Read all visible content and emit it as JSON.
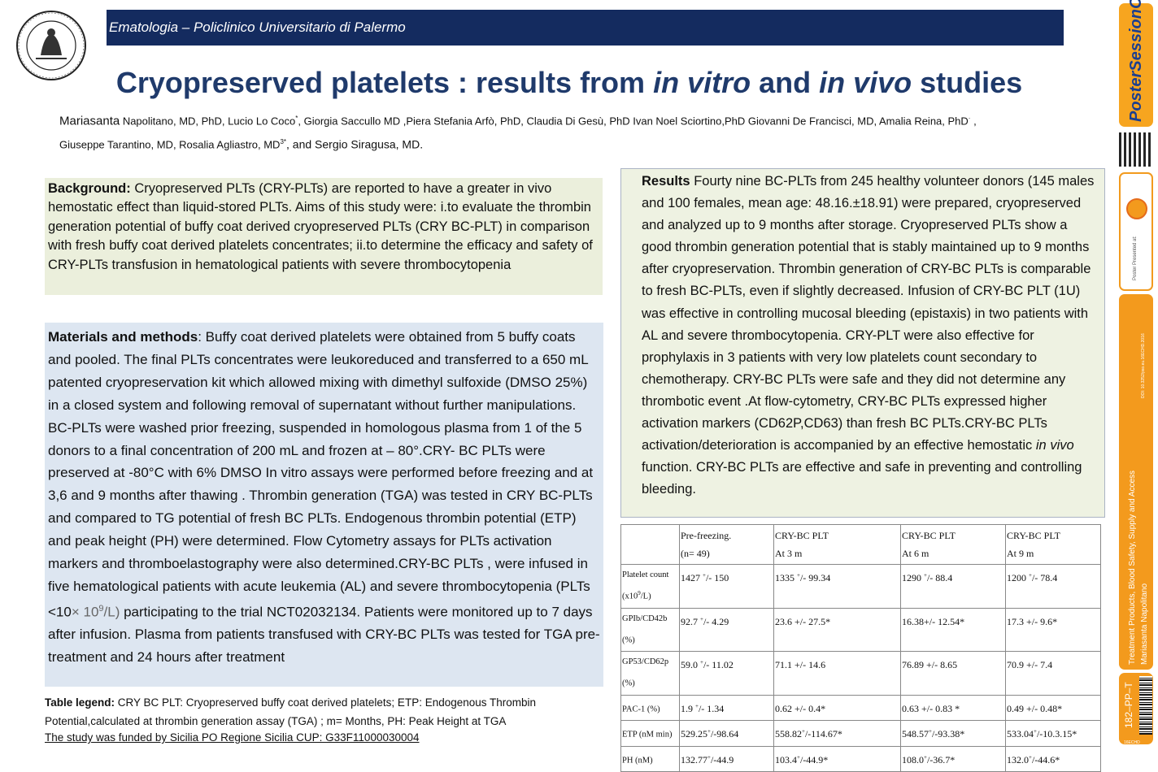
{
  "header": {
    "bar_text": "Ematologia – Policlinico Universitario di Palermo"
  },
  "logo": {
    "seal_text": "PANORMITANAE STVDIORVM VNIVERSITATIS SIGILLVM"
  },
  "title": {
    "part1": "Cryopreserved platelets : results from ",
    "italic1": "in vitro",
    "part2": " and ",
    "italic2": "in vivo",
    "part3": " studies"
  },
  "authors": {
    "first_given": "Mariasanta",
    "line1": " Napolitano, MD, PhD, Lucio Lo Coco",
    "sup1": "*",
    "line1b": ", Giorgia Saccullo MD ,Piera Stefania Arfò, PhD, Claudia Di Gesù, PhD Ivan Noel Sciortino,PhD Giovanni De Francisci, MD, Amalia Reina, PhD",
    "sup2": "·",
    "line1c": " ,",
    "line2": "Giuseppe Tarantino, MD, Rosalia Agliastro, MD",
    "sup3": "3*",
    "line2b": ", and Sergio Siragusa, MD."
  },
  "background": {
    "heading": "Background:",
    "text": " Cryopreserved PLTs (CRY-PLTs) are reported to have a greater in   vivo hemostatic effect than liquid-stored PLTs. Aims of this study were: i.to evaluate the thrombin generation potential of buffy coat derived cryopreserved PLTs (CRY BC-PLT) in comparison with fresh buffy coat derived platelets concentrates; ii.to determine the efficacy and safety of CRY-PLTs transfusion in hematological patients with severe thrombocytopenia"
  },
  "methods": {
    "heading": "Materials and methods",
    "text_a": ": Buffy coat derived platelets were obtained from 5 buffy coats and pooled. The final PLTs concentrates were leukoreduced and transferred to a 650 mL patented cryopreservation kit which allowed mixing with dimethyl sulfoxide (DMSO 25%) in a closed system and following removal of supernatant without further manipulations. BC-PLTs were washed prior freezing, suspended in homologous plasma from 1 of the 5 donors to a final concentration of 200 mL and frozen at – 80°.CRY- BC PLTs were preserved at -80°C with 6% DMSO  In vitro assays were performed before freezing and at 3,6 and 9 months after thawing . Thrombin generation (TGA) was tested in CRY BC-PLTs and compared to TG potential of fresh BC PLTs. Endogenous thrombin potential (ETP) and peak height (PH) were determined. Flow Cytometry assays for  PLTs activation markers and thromboelastography were also determined.CRY-BC PLTs , were infused in five hematological patients with acute leukemia (AL) and severe thrombocytopenia (PLTs <10",
    "text_gray": "× 10",
    "text_sup": "9",
    "text_gray2": "/L)",
    "text_b": " participating to the trial NCT02032134. Patients were monitored up to 7 days after infusion. Plasma from patients transfused with CRY-BC PLTs was tested for TGA pre-treatment and 24 hours after treatment"
  },
  "results": {
    "heading": "Results",
    "text_a": " Fourty nine BC-PLTs from 245 healthy volunteer donors (145 males and 100 females, mean age: 48.16.±18.91) were prepared, cryopreserved and analyzed up to 9 months after storage. Cryopreserved PLTs show a good thrombin generation potential that is stably maintained up to 9 months after cryopreservation. Thrombin generation of CRY-BC PLTs is comparable to fresh BC-PLTs, even if slightly decreased. Infusion of CRY-BC PLT (1U) was effective in controlling mucosal bleeding (epistaxis) in two patients  with AL and severe thrombocytopenia. CRY-PLT were also effective for prophylaxis in 3 patients with very low platelets count secondary to chemotherapy. CRY-BC PLTs were safe and they did not determine any thrombotic event .At flow-cytometry, CRY-BC PLTs expressed higher activation markers (CD62P,CD63)  than fresh BC PLTs.CRY-BC PLTs activation/deterioration is accompanied by an effective hemostatic ",
    "italic": "in vivo",
    "text_b": " function. CRY-BC PLTs are effective and safe in preventing and controlling bleeding."
  },
  "table": {
    "headers": [
      {
        "l1": "",
        "l2": ""
      },
      {
        "l1": "Pre-freezing.",
        "l2": "(n= 49)"
      },
      {
        "l1": "CRY-BC PLT",
        "l2": "At 3 m"
      },
      {
        "l1": "CRY-BC PLT",
        "l2": "At 6 m"
      },
      {
        "l1": "CRY-BC PLT",
        "l2": "At 9 m"
      }
    ],
    "rows": [
      {
        "label": "Platelet  count (x10",
        "label_sup": "9",
        "label_end": "/L)",
        "cells": [
          "1427 ",
          "1335 ",
          "1290 ",
          "1200 "
        ],
        "sups": [
          "+",
          "+",
          "+",
          "+"
        ],
        "tails": [
          "/- 150",
          "/- 99.34",
          "/- 88.4",
          "/- 78.4"
        ]
      },
      {
        "label": "GPIb/CD42b (%)",
        "label_sup": "",
        "label_end": "",
        "cells": [
          "92.7 ",
          "23.6 +/- 27.5*",
          "16.38+/- 12.54*",
          "17.3 +/- 9.6*"
        ],
        "sups": [
          "+",
          "",
          "",
          ""
        ],
        "tails": [
          "/- 4.29",
          "",
          "",
          ""
        ]
      },
      {
        "label": "GP53/CD62p (%)",
        "label_sup": "",
        "label_end": "",
        "cells": [
          "59.0 ",
          "71.1 +/- 14.6",
          "76.89 +/- 8.65",
          "70.9 +/- 7.4"
        ],
        "sups": [
          "+",
          "",
          "",
          ""
        ],
        "tails": [
          "/- 11.02",
          "",
          "",
          ""
        ]
      },
      {
        "label": "PAC-1 (%)",
        "label_sup": "",
        "label_end": "",
        "cells": [
          "1.9 ",
          "0.62 +/- 0.4*",
          "0.63 +/- 0.83 *",
          "0.49 +/- 0.48*"
        ],
        "sups": [
          "+",
          "",
          "",
          ""
        ],
        "tails": [
          "/- 1.34",
          "",
          "",
          ""
        ]
      },
      {
        "label": "ETP        (nM min)",
        "label_sup": "",
        "label_end": "",
        "cells": [
          "529.25",
          "558.82",
          "548.57",
          "533.04"
        ],
        "sups": [
          "+",
          "+",
          "+",
          "+"
        ],
        "tails": [
          "/-98.64",
          "/-114.67*",
          "/-93.38*",
          "/-10.3.15*"
        ]
      },
      {
        "label": "PH (nM)",
        "label_sup": "",
        "label_end": "",
        "cells": [
          "132.77",
          "103.4",
          "108.0",
          "132.0"
        ],
        "sups": [
          "+",
          "+",
          "+",
          "+"
        ],
        "tails": [
          "/-44.9",
          "/-44.9*",
          "/-36.7*",
          "/-44.6*"
        ]
      }
    ]
  },
  "legend": {
    "heading": "Table legend:",
    "text": " CRY BC PLT: Cryopreserved buffy coat derived platelets; ETP: Endogenous Thrombin Potential,calculated at thrombin generation assay (TGA) ; m= Months, PH: Peak Height at TGA"
  },
  "funding": {
    "text": "The study was funded by Sicilia PO Regione Sicilia CUP: G33F11000030004"
  },
  "sidebar": {
    "brand": "PosterSessionOnline",
    "presented": "Poster Presented at:",
    "doi": "DOI: 10.3252/pso.eu.16ECHD.2016",
    "topic": "Treatment Products, Blood Safety, Supply and Access",
    "author": "Mariasanta Napolitano",
    "poster_id": "182–PP–T",
    "code": "16ECHD"
  }
}
